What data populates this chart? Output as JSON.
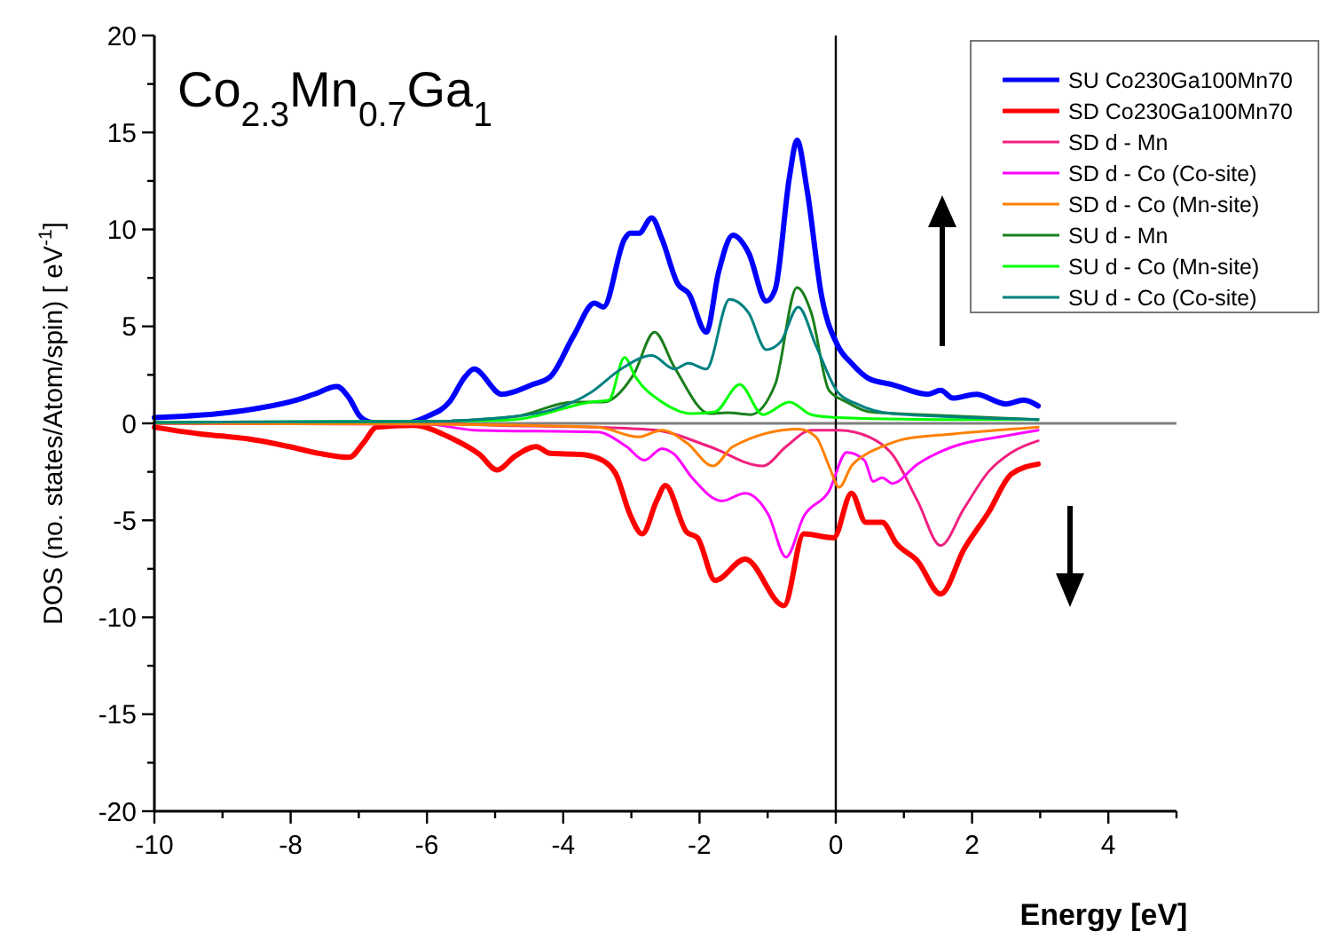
{
  "chart_data": {
    "type": "line",
    "title": "Co$_{2.3}$Mn$_{0.7}$Ga$_{1}$",
    "xlabel": "Energy [eV]",
    "ylabel": "DOS (no. states/Atom/spin) [ eV$^{-1}$]",
    "xlim": [
      -10,
      5
    ],
    "ylim": [
      -20,
      20
    ],
    "xticks": [
      -10,
      {
        "value": -9,
        "label": null
      },
      -8,
      {
        "value": -7,
        "label": null
      },
      -6,
      {
        "value": -5,
        "label": null
      },
      -4,
      {
        "value": -3,
        "label": null
      },
      -2,
      {
        "value": -1,
        "label": null
      },
      0,
      {
        "value": 1,
        "label": null
      },
      2,
      {
        "value": 3,
        "label": null
      },
      4,
      {
        "value": 5,
        "label": null
      }
    ],
    "yticks": [
      -20,
      {
        "value": -17.5,
        "label": null
      },
      -15,
      {
        "value": -12.5,
        "label": null
      },
      -10,
      {
        "value": -7.5,
        "label": null
      },
      -5,
      {
        "value": -2.5,
        "label": null
      },
      0,
      {
        "value": 2.5,
        "label": null
      },
      5,
      {
        "value": 7.5,
        "label": null
      },
      10,
      {
        "value": 12.5,
        "label": null
      },
      15,
      {
        "value": 17.5,
        "label": null
      },
      20
    ],
    "grid": false,
    "legend": "top right",
    "line_style": "solid",
    "marker": "none",
    "ref_lines": [
      {
        "axis": "y",
        "value": 0,
        "label": null,
        "color": "#808080"
      },
      {
        "axis": "x",
        "value": 0,
        "label": null,
        "color": "#000000"
      }
    ],
    "series": [
      {
        "name": "SU Co230Ga100Mn70",
        "color": "#0000ff",
        "x": [
          -10,
          -9.06,
          -8.44,
          -7.92,
          -7.66,
          -7.32,
          -7.14,
          -6.98,
          -6.8,
          -6.35,
          -6.0,
          -5.67,
          -5.44,
          -5.31,
          -4.9,
          -4.45,
          -4.19,
          -3.85,
          -3.54,
          -3.41,
          -3.1,
          -3.02,
          -2.89,
          -2.7,
          -2.55,
          -2.32,
          -2.16,
          -1.9,
          -1.72,
          -1.51,
          -1.28,
          -1.02,
          -0.89,
          -0.68,
          -0.57,
          -0.42,
          -0.21,
          0.03,
          0.23,
          0.49,
          0.83,
          1.35,
          1.54,
          1.72,
          2.06,
          2.5,
          2.76,
          2.97
        ],
        "values": [
          0.3,
          0.5,
          0.8,
          1.2,
          1.5,
          1.9,
          1.3,
          0.35,
          0.05,
          0,
          0.35,
          1.1,
          2.4,
          2.8,
          1.5,
          2.0,
          2.4,
          4.5,
          6.2,
          6.0,
          9.5,
          9.8,
          9.8,
          10.6,
          9.5,
          7.2,
          6.7,
          4.7,
          7.8,
          9.7,
          8.8,
          6.3,
          6.9,
          12.7,
          14.6,
          12,
          6.6,
          4.0,
          3.1,
          2.3,
          2.0,
          1.5,
          1.7,
          1.3,
          1.5,
          1.0,
          1.2,
          0.9
        ]
      },
      {
        "name": "SD Co230Ga100Mn70",
        "color": "#ff0000",
        "x": [
          -10,
          -9.32,
          -8.62,
          -8.02,
          -7.58,
          -7.14,
          -6.93,
          -6.74,
          -6.2,
          -5.68,
          -5.23,
          -4.97,
          -4.71,
          -4.4,
          -4.19,
          -3.75,
          -3.49,
          -3.23,
          -3.02,
          -2.84,
          -2.63,
          -2.5,
          -2.19,
          -2.03,
          -1.77,
          -1.33,
          -0.76,
          -0.47,
          -0.03,
          0.23,
          0.44,
          0.68,
          0.89,
          1.2,
          1.54,
          1.88,
          2.24,
          2.58,
          2.97
        ],
        "values": [
          -0.2,
          -0.55,
          -0.8,
          -1.2,
          -1.55,
          -1.75,
          -1.0,
          -0.2,
          -0.1,
          -0.7,
          -1.6,
          -2.4,
          -1.7,
          -1.2,
          -1.55,
          -1.6,
          -1.8,
          -2.6,
          -4.7,
          -5.7,
          -4.0,
          -3.2,
          -5.6,
          -5.9,
          -8.1,
          -7.0,
          -9.4,
          -5.7,
          -5.9,
          -3.6,
          -5.1,
          -5.1,
          -6.2,
          -7.1,
          -8.8,
          -6.5,
          -4.6,
          -2.6,
          -2.1
        ]
      },
      {
        "name": "SD d - Mn",
        "color": "#f0207f",
        "x": [
          -10,
          -6,
          -5,
          -3.5,
          -2.63,
          -1.85,
          -1.07,
          -0.73,
          -0.36,
          0.05,
          0.49,
          0.83,
          1.2,
          1.54,
          1.88,
          2.24,
          2.58,
          2.97
        ],
        "values": [
          0,
          0,
          -0.1,
          -0.2,
          -0.35,
          -1.2,
          -2.2,
          -1.2,
          -0.35,
          -0.35,
          -0.7,
          -1.6,
          -4.0,
          -6.3,
          -4.4,
          -2.5,
          -1.5,
          -0.9
        ]
      },
      {
        "name": "SD d - Co (Co-site)",
        "color": "#ff00ff",
        "x": [
          -10,
          -6,
          -5.3,
          -3.5,
          -3.07,
          -2.81,
          -2.55,
          -2.37,
          -2.11,
          -1.67,
          -1.33,
          -0.99,
          -0.73,
          -0.47,
          -0.1,
          0.16,
          0.42,
          0.55,
          0.68,
          0.83,
          1.2,
          1.72,
          2.4,
          2.97
        ],
        "values": [
          0,
          -0.05,
          -0.35,
          -0.45,
          -1.2,
          -1.9,
          -1.3,
          -1.6,
          -2.8,
          -4.0,
          -3.6,
          -4.7,
          -6.9,
          -4.8,
          -3.5,
          -1.5,
          -1.9,
          -3.0,
          -2.8,
          -3.1,
          -2.1,
          -1.2,
          -0.7,
          -0.35
        ]
      },
      {
        "name": "SD d - Co (Mn-site)",
        "color": "#ff8000",
        "x": [
          -10,
          -6,
          -3.5,
          -2.89,
          -2.55,
          -2.19,
          -1.8,
          -1.51,
          -0.55,
          -0.29,
          -0.1,
          0.05,
          0.23,
          0.44,
          0.68,
          1.02,
          1.72,
          2.97
        ],
        "values": [
          0,
          -0.05,
          -0.2,
          -0.7,
          -0.35,
          -1.0,
          -2.2,
          -1.2,
          -0.3,
          -0.7,
          -2.2,
          -3.3,
          -2.2,
          -1.6,
          -1.2,
          -0.8,
          -0.55,
          -0.2
        ]
      },
      {
        "name": "SU d - Mn",
        "color": "#1a7f1a",
        "x": [
          -10,
          -6,
          -4.71,
          -3.85,
          -3.41,
          -2.97,
          -2.66,
          -2.37,
          -1.85,
          -1.59,
          -1.25,
          -0.89,
          -0.57,
          -0.36,
          -0.1,
          0.16,
          0.49,
          1.28,
          2.97
        ],
        "values": [
          0.05,
          0.1,
          0.35,
          1.1,
          1.1,
          2.5,
          4.7,
          2.9,
          0.5,
          0.55,
          0.45,
          2.0,
          7.0,
          5.7,
          1.7,
          1.1,
          0.6,
          0.45,
          0.2
        ]
      },
      {
        "name": "SU d - Co (Mn-site)",
        "color": "#00ff00",
        "x": [
          -10,
          -6,
          -4.71,
          -3.59,
          -3.33,
          -3.1,
          -2.94,
          -2.55,
          -2.11,
          -1.77,
          -1.41,
          -1.07,
          -0.68,
          -0.36,
          0.03,
          1.5,
          2.97
        ],
        "values": [
          0.05,
          0.1,
          0.2,
          1.1,
          1.2,
          3.4,
          2.4,
          1.1,
          0.5,
          0.6,
          2.0,
          0.45,
          1.1,
          0.45,
          0.3,
          0.2,
          0.2
        ]
      },
      {
        "name": "SU d - Co (Co-site)",
        "color": "#008080",
        "x": [
          -10,
          -6,
          -4.71,
          -3.59,
          -3.15,
          -2.7,
          -2.37,
          -2.16,
          -1.9,
          -1.56,
          -1.28,
          -1.02,
          -0.81,
          -0.55,
          -0.29,
          0.03,
          0.31,
          0.83,
          2.97
        ],
        "values": [
          0.05,
          0.1,
          0.35,
          1.6,
          2.8,
          3.5,
          2.8,
          3.1,
          2.8,
          6.4,
          5.7,
          3.8,
          4.2,
          6.0,
          4.0,
          1.6,
          1.0,
          0.5,
          0.2
        ]
      }
    ]
  }
}
